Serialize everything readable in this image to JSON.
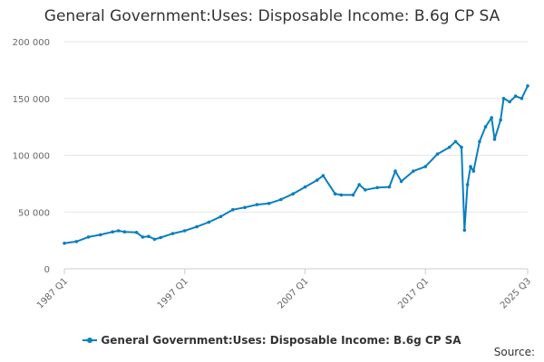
{
  "chart_data": {
    "type": "line",
    "title": "General Government:Uses: Disposable Income: B.6g CP SA",
    "xlabel": "",
    "ylabel": "",
    "ylim": [
      0,
      200000
    ],
    "y_ticks": [
      "0",
      "50 000",
      "100 000",
      "150 000",
      "200 000"
    ],
    "x_tick_labels": [
      "1987 Q1",
      "1997 Q1",
      "2007 Q1",
      "2017 Q1",
      "2025 Q3"
    ],
    "x_range": [
      "1987 Q1",
      "2025 Q3"
    ],
    "grid": "horizontal",
    "legend_position": "bottom",
    "series": [
      {
        "name": "General Government:Uses: Disposable Income: B.6g CP SA",
        "color": "#0a7fbf",
        "points": [
          [
            "1987 Q1",
            22500
          ],
          [
            "1988 Q1",
            24000
          ],
          [
            "1989 Q1",
            28000
          ],
          [
            "1990 Q1",
            30000
          ],
          [
            "1991 Q1",
            32500
          ],
          [
            "1991 Q3",
            33500
          ],
          [
            "1992 Q1",
            32500
          ],
          [
            "1993 Q1",
            32000
          ],
          [
            "1993 Q3",
            28000
          ],
          [
            "1994 Q1",
            28500
          ],
          [
            "1994 Q3",
            26000
          ],
          [
            "1995 Q1",
            27500
          ],
          [
            "1996 Q1",
            31000
          ],
          [
            "1997 Q1",
            33500
          ],
          [
            "1998 Q1",
            37000
          ],
          [
            "1999 Q1",
            41000
          ],
          [
            "2000 Q1",
            46000
          ],
          [
            "2001 Q1",
            52000
          ],
          [
            "2002 Q1",
            54000
          ],
          [
            "2003 Q1",
            56500
          ],
          [
            "2004 Q1",
            57500
          ],
          [
            "2005 Q1",
            61000
          ],
          [
            "2006 Q1",
            66000
          ],
          [
            "2007 Q1",
            72000
          ],
          [
            "2008 Q1",
            78000
          ],
          [
            "2008 Q3",
            82000
          ],
          [
            "2009 Q3",
            66000
          ],
          [
            "2010 Q1",
            65000
          ],
          [
            "2011 Q1",
            65000
          ],
          [
            "2011 Q3",
            74000
          ],
          [
            "2012 Q1",
            69500
          ],
          [
            "2013 Q1",
            71500
          ],
          [
            "2014 Q1",
            72000
          ],
          [
            "2014 Q3",
            86000
          ],
          [
            "2015 Q1",
            77000
          ],
          [
            "2016 Q1",
            86000
          ],
          [
            "2017 Q1",
            90000
          ],
          [
            "2018 Q1",
            101000
          ],
          [
            "2019 Q1",
            107000
          ],
          [
            "2019 Q3",
            112000
          ],
          [
            "2020 Q1",
            107000
          ],
          [
            "2020 Q2",
            34000
          ],
          [
            "2020 Q3",
            74000
          ],
          [
            "2020 Q4",
            90000
          ],
          [
            "2021 Q1",
            86000
          ],
          [
            "2021 Q3",
            112000
          ],
          [
            "2022 Q1",
            125000
          ],
          [
            "2022 Q3",
            133000
          ],
          [
            "2022 Q4",
            114000
          ],
          [
            "2023 Q2",
            131000
          ],
          [
            "2023 Q3",
            150000
          ],
          [
            "2024 Q1",
            147000
          ],
          [
            "2024 Q3",
            152000
          ],
          [
            "2025 Q1",
            150000
          ],
          [
            "2025 Q3",
            161000
          ]
        ]
      }
    ]
  },
  "source_label": "Source:"
}
